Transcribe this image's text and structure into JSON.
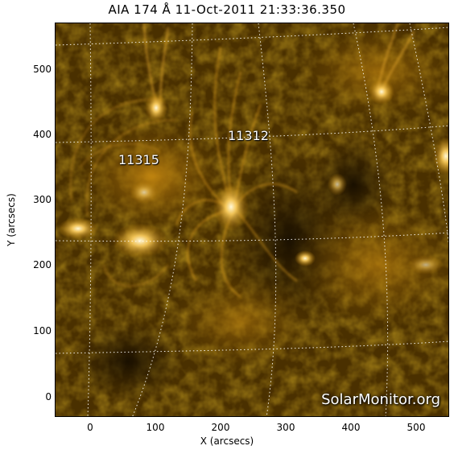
{
  "title": "AIA 174 Å 11-Oct-2011 21:33:36.350",
  "xlabel": "X (arcsecs)",
  "ylabel": "Y (arcsecs)",
  "x_ticks": [
    "0",
    "100",
    "200",
    "300",
    "400",
    "500"
  ],
  "y_ticks": [
    "0",
    "100",
    "200",
    "300",
    "400",
    "500"
  ],
  "active_regions": [
    {
      "label": "11312"
    },
    {
      "label": "11315"
    }
  ],
  "watermark": "SolarMonitor.org",
  "colors": {
    "background": "#3a2400",
    "loop_bright": "#ffc24a",
    "hot": "#fff3c0",
    "grid": "#ffffff"
  },
  "image_subject": "solar corona EUV image with coronal loops (AIA 174 Å channel)"
}
